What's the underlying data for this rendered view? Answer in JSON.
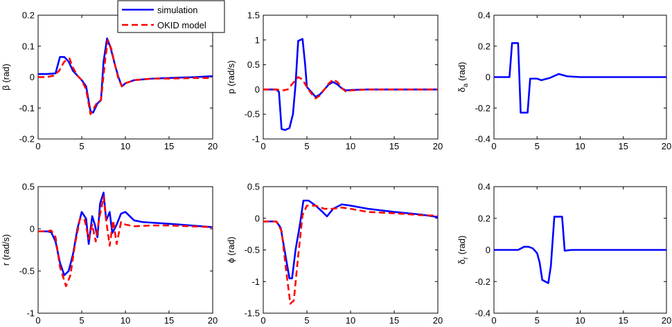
{
  "legend": {
    "entries": [
      {
        "label": "simulation",
        "color": "#0000ff",
        "style": "solid"
      },
      {
        "label": "OKID model",
        "color": "#ff0000",
        "style": "dashed"
      }
    ]
  },
  "chart_data": [
    {
      "type": "line",
      "ylabel": "β (rad)",
      "xlim": [
        0,
        20
      ],
      "ylim": [
        -0.2,
        0.2
      ],
      "xticks": [
        "0",
        "5",
        "10",
        "15",
        "20"
      ],
      "yticks": [
        "-0.2",
        "-0.1",
        "0",
        "0.1",
        "0.2"
      ],
      "legend_position": "top-right",
      "series": [
        {
          "name": "simulation",
          "color": "#0000ff",
          "dash": false,
          "points": [
            [
              0,
              0.01
            ],
            [
              1,
              0.01
            ],
            [
              2,
              0.012
            ],
            [
              2.5,
              0.065
            ],
            [
              3,
              0.065
            ],
            [
              3.5,
              0.05
            ],
            [
              4,
              0.02
            ],
            [
              4.5,
              0.005
            ],
            [
              5,
              -0.01
            ],
            [
              5.5,
              -0.03
            ],
            [
              6,
              -0.11
            ],
            [
              6.3,
              -0.115
            ],
            [
              6.8,
              -0.085
            ],
            [
              7.2,
              -0.075
            ],
            [
              7.5,
              0.05
            ],
            [
              7.9,
              0.125
            ],
            [
              8.3,
              0.095
            ],
            [
              8.8,
              0.04
            ],
            [
              9.2,
              0
            ],
            [
              9.6,
              -0.03
            ],
            [
              10,
              -0.02
            ],
            [
              11,
              -0.01
            ],
            [
              13,
              -0.005
            ],
            [
              15,
              -0.003
            ],
            [
              18,
              0
            ],
            [
              20,
              0.003
            ]
          ]
        },
        {
          "name": "OKID model",
          "color": "#ff0000",
          "dash": true,
          "points": [
            [
              0,
              0
            ],
            [
              1,
              0
            ],
            [
              1.8,
              0.005
            ],
            [
              2.4,
              0.02
            ],
            [
              3,
              0.05
            ],
            [
              3.6,
              0.06
            ],
            [
              4,
              0.03
            ],
            [
              4.5,
              0.005
            ],
            [
              5,
              -0.01
            ],
            [
              5.5,
              -0.04
            ],
            [
              6,
              -0.12
            ],
            [
              6.4,
              -0.1
            ],
            [
              6.8,
              -0.08
            ],
            [
              7.2,
              -0.075
            ],
            [
              7.7,
              0.06
            ],
            [
              8,
              0.12
            ],
            [
              8.4,
              0.09
            ],
            [
              8.8,
              0.04
            ],
            [
              9.2,
              -0.005
            ],
            [
              9.6,
              -0.03
            ],
            [
              10,
              -0.02
            ],
            [
              11,
              -0.01
            ],
            [
              13,
              -0.005
            ],
            [
              15,
              -0.005
            ],
            [
              18,
              -0.003
            ],
            [
              20,
              -0.003
            ]
          ]
        }
      ]
    },
    {
      "type": "line",
      "ylabel": "p (rad/s)",
      "xlim": [
        0,
        20
      ],
      "ylim": [
        -1,
        1.5
      ],
      "xticks": [
        "0",
        "5",
        "10",
        "15",
        "20"
      ],
      "yticks": [
        "-1",
        "-0.5",
        "0",
        "0.5",
        "1",
        "1.5"
      ],
      "series": [
        {
          "name": "simulation",
          "color": "#0000ff",
          "dash": false,
          "points": [
            [
              0,
              0
            ],
            [
              1.5,
              0
            ],
            [
              1.8,
              -0.05
            ],
            [
              2.1,
              -0.8
            ],
            [
              2.5,
              -0.82
            ],
            [
              3,
              -0.78
            ],
            [
              3.4,
              -0.5
            ],
            [
              3.7,
              0.1
            ],
            [
              4,
              0.98
            ],
            [
              4.5,
              1.02
            ],
            [
              4.8,
              0.5
            ],
            [
              5,
              0.05
            ],
            [
              5.5,
              -0.05
            ],
            [
              6,
              -0.15
            ],
            [
              6.5,
              -0.1
            ],
            [
              7,
              0
            ],
            [
              7.5,
              0.1
            ],
            [
              8,
              0.15
            ],
            [
              8.5,
              0.1
            ],
            [
              9,
              0.02
            ],
            [
              9.5,
              -0.02
            ],
            [
              10,
              -0.01
            ],
            [
              12,
              0
            ],
            [
              15,
              0
            ],
            [
              20,
              0
            ]
          ]
        },
        {
          "name": "OKID model",
          "color": "#ff0000",
          "dash": true,
          "points": [
            [
              0,
              0
            ],
            [
              1.5,
              0
            ],
            [
              2.2,
              -0.02
            ],
            [
              2.8,
              0
            ],
            [
              3.5,
              0.15
            ],
            [
              4,
              0.25
            ],
            [
              4.5,
              0.2
            ],
            [
              5,
              0.05
            ],
            [
              5.5,
              -0.08
            ],
            [
              6,
              -0.18
            ],
            [
              6.5,
              -0.12
            ],
            [
              7,
              0
            ],
            [
              7.5,
              0.12
            ],
            [
              8,
              0.2
            ],
            [
              8.5,
              0.15
            ],
            [
              9,
              0.03
            ],
            [
              9.5,
              -0.05
            ],
            [
              10,
              -0.02
            ],
            [
              12,
              0
            ],
            [
              15,
              0
            ],
            [
              20,
              0
            ]
          ]
        }
      ]
    },
    {
      "type": "line",
      "ylabel": "δa (rad)",
      "ylabel_main": "δ",
      "ylabel_sub": "a",
      "ylabel_unit": " (rad)",
      "xlim": [
        0,
        20
      ],
      "ylim": [
        -0.4,
        0.4
      ],
      "xticks": [
        "0",
        "5",
        "10",
        "15",
        "20"
      ],
      "yticks": [
        "-0.4",
        "-0.2",
        "0",
        "0.2",
        "0.4"
      ],
      "series": [
        {
          "name": "simulation",
          "color": "#0000ff",
          "dash": false,
          "points": [
            [
              0,
              0
            ],
            [
              1.8,
              0
            ],
            [
              2.1,
              0.22
            ],
            [
              2.8,
              0.22
            ],
            [
              3.1,
              -0.23
            ],
            [
              3.9,
              -0.23
            ],
            [
              4.2,
              -0.01
            ],
            [
              5,
              -0.01
            ],
            [
              5.5,
              -0.02
            ],
            [
              6.5,
              -0.005
            ],
            [
              7.5,
              0.02
            ],
            [
              8.5,
              0.005
            ],
            [
              10,
              0
            ],
            [
              20,
              0
            ]
          ]
        }
      ]
    },
    {
      "type": "line",
      "ylabel": "r (rad/s)",
      "xlim": [
        0,
        20
      ],
      "ylim": [
        -1,
        0.5
      ],
      "xticks": [
        "0",
        "5",
        "10",
        "15",
        "20"
      ],
      "yticks": [
        "-1",
        "-0.5",
        "0",
        "0.5"
      ],
      "series": [
        {
          "name": "simulation",
          "color": "#0000ff",
          "dash": false,
          "points": [
            [
              0,
              -0.03
            ],
            [
              1,
              -0.03
            ],
            [
              1.5,
              -0.04
            ],
            [
              2,
              -0.15
            ],
            [
              2.5,
              -0.4
            ],
            [
              3,
              -0.55
            ],
            [
              3.5,
              -0.5
            ],
            [
              4,
              -0.3
            ],
            [
              4.5,
              0
            ],
            [
              5,
              0.2
            ],
            [
              5.5,
              0.12
            ],
            [
              5.8,
              -0.18
            ],
            [
              6.2,
              0.15
            ],
            [
              6.5,
              0.05
            ],
            [
              6.8,
              -0.1
            ],
            [
              7.1,
              0.3
            ],
            [
              7.5,
              0.43
            ],
            [
              7.8,
              0.1
            ],
            [
              8.2,
              0.2
            ],
            [
              8.5,
              -0.05
            ],
            [
              9,
              0.05
            ],
            [
              9.5,
              0.18
            ],
            [
              10,
              0.2
            ],
            [
              11,
              0.1
            ],
            [
              12,
              0.08
            ],
            [
              15,
              0.06
            ],
            [
              20,
              0.02
            ]
          ]
        },
        {
          "name": "OKID model",
          "color": "#ff0000",
          "dash": true,
          "points": [
            [
              0,
              -0.03
            ],
            [
              1,
              -0.03
            ],
            [
              1.5,
              -0.02
            ],
            [
              2,
              -0.1
            ],
            [
              2.5,
              -0.45
            ],
            [
              3.2,
              -0.68
            ],
            [
              3.7,
              -0.55
            ],
            [
              4.2,
              -0.2
            ],
            [
              4.8,
              0.12
            ],
            [
              5.3,
              0.12
            ],
            [
              5.8,
              -0.12
            ],
            [
              6.2,
              0.05
            ],
            [
              6.6,
              -0.15
            ],
            [
              7,
              0.12
            ],
            [
              7.5,
              0.38
            ],
            [
              7.8,
              0.1
            ],
            [
              8.2,
              -0.2
            ],
            [
              8.6,
              0.1
            ],
            [
              9,
              -0.18
            ],
            [
              9.5,
              0.08
            ],
            [
              10,
              0.05
            ],
            [
              11,
              0.03
            ],
            [
              13,
              0.04
            ],
            [
              15,
              0.04
            ],
            [
              20,
              0.02
            ]
          ]
        }
      ]
    },
    {
      "type": "line",
      "ylabel": "ϕ (rad)",
      "xlim": [
        0,
        20
      ],
      "ylim": [
        -1.5,
        0.5
      ],
      "xticks": [
        "0",
        "5",
        "10",
        "15",
        "20"
      ],
      "yticks": [
        "-1.5",
        "-1",
        "-0.5",
        "0",
        "0.5"
      ],
      "series": [
        {
          "name": "simulation",
          "color": "#0000ff",
          "dash": false,
          "points": [
            [
              0,
              -0.05
            ],
            [
              1.5,
              -0.05
            ],
            [
              2,
              -0.15
            ],
            [
              2.5,
              -0.55
            ],
            [
              3,
              -0.95
            ],
            [
              3.3,
              -0.95
            ],
            [
              3.7,
              -0.5
            ],
            [
              4.2,
              -0.1
            ],
            [
              4.6,
              0.28
            ],
            [
              5.2,
              0.28
            ],
            [
              6,
              0.2
            ],
            [
              6.8,
              0.1
            ],
            [
              7.3,
              0.03
            ],
            [
              8,
              0.15
            ],
            [
              9,
              0.22
            ],
            [
              10,
              0.2
            ],
            [
              12,
              0.15
            ],
            [
              15,
              0.1
            ],
            [
              18,
              0.06
            ],
            [
              20,
              0.02
            ]
          ]
        },
        {
          "name": "OKID model",
          "color": "#ff0000",
          "dash": true,
          "points": [
            [
              0,
              -0.05
            ],
            [
              1.5,
              -0.05
            ],
            [
              2.1,
              -0.2
            ],
            [
              2.6,
              -0.8
            ],
            [
              3.1,
              -1.35
            ],
            [
              3.5,
              -1.3
            ],
            [
              4,
              -0.6
            ],
            [
              4.5,
              0.05
            ],
            [
              5,
              0.2
            ],
            [
              6,
              0.2
            ],
            [
              7,
              0.15
            ],
            [
              8,
              0.15
            ],
            [
              9,
              0.17
            ],
            [
              10,
              0.15
            ],
            [
              12,
              0.1
            ],
            [
              15,
              0.08
            ],
            [
              18,
              0.05
            ],
            [
              20,
              0.04
            ]
          ]
        }
      ]
    },
    {
      "type": "line",
      "ylabel": "δr (rad)",
      "ylabel_main": "δ",
      "ylabel_sub": "r",
      "ylabel_unit": " (rad)",
      "xlim": [
        0,
        20
      ],
      "ylim": [
        -0.4,
        0.4
      ],
      "xticks": [
        "0",
        "5",
        "10",
        "15",
        "20"
      ],
      "yticks": [
        "-0.4",
        "-0.2",
        "0",
        "0.2",
        "0.4"
      ],
      "series": [
        {
          "name": "simulation",
          "color": "#0000ff",
          "dash": false,
          "points": [
            [
              0,
              0
            ],
            [
              2,
              0
            ],
            [
              2.8,
              0
            ],
            [
              3.5,
              0.02
            ],
            [
              4,
              0.02
            ],
            [
              4.5,
              0.01
            ],
            [
              5,
              -0.02
            ],
            [
              5.3,
              -0.08
            ],
            [
              5.6,
              -0.19
            ],
            [
              6.3,
              -0.21
            ],
            [
              6.6,
              -0.1
            ],
            [
              7,
              0.21
            ],
            [
              7.9,
              0.21
            ],
            [
              8.2,
              -0.005
            ],
            [
              9,
              0
            ],
            [
              10,
              0
            ],
            [
              20,
              0
            ]
          ]
        }
      ]
    }
  ]
}
